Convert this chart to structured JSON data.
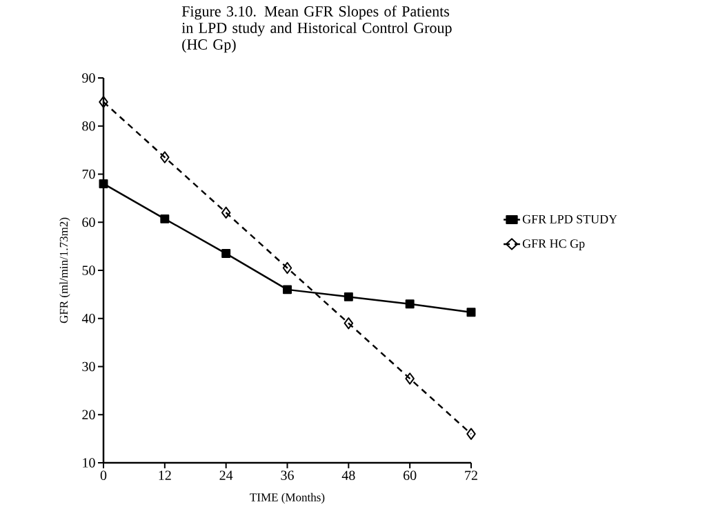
{
  "chart_data": {
    "type": "line",
    "title": "Figure 3.10. Mean GFR Slopes of Patients in LPD study and Historical Control Group (HC Gp)",
    "xlabel": "TIME (Months)",
    "ylabel": "GFR  (ml/min/1.73m2)",
    "x": [
      0,
      12,
      24,
      36,
      48,
      60,
      72
    ],
    "series": [
      {
        "name": "GFR LPD STUDY",
        "color": "#000000",
        "values": [
          68,
          60.7,
          53.5,
          46,
          44.5,
          43,
          41.3
        ],
        "marker": "square",
        "line_style": "solid"
      },
      {
        "name": "GFR HC Gp",
        "color": "#000000",
        "values": [
          85,
          73.5,
          62,
          50.5,
          39,
          27.5,
          16
        ],
        "marker": "diamond",
        "line_style": "dashed"
      }
    ],
    "xlim": [
      0,
      72
    ],
    "xticks": [
      0,
      12,
      24,
      36,
      48,
      60,
      72
    ],
    "ylim": [
      10,
      90
    ],
    "yticks": [
      10,
      20,
      30,
      40,
      50,
      60,
      70,
      80,
      90
    ],
    "grid": false,
    "legend": "right"
  }
}
